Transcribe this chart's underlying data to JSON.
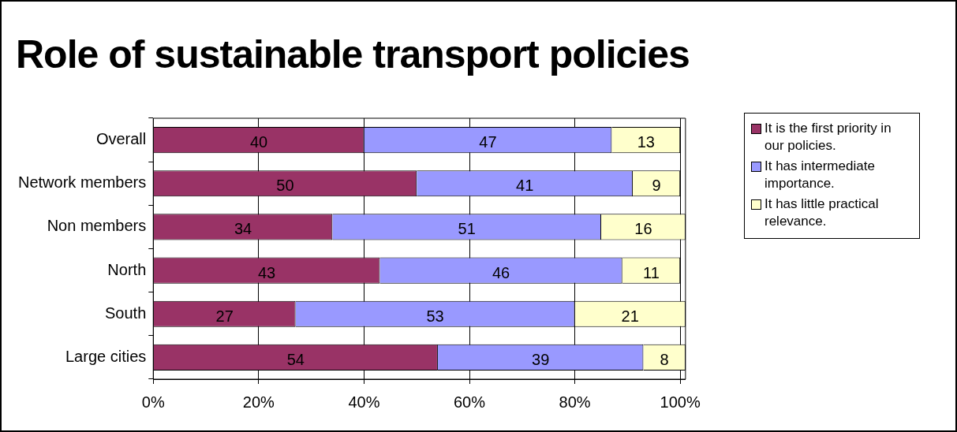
{
  "chart_data": {
    "type": "bar",
    "orientation": "horizontal",
    "stacked": true,
    "title": "Role of sustainable transport policies",
    "categories": [
      "Overall",
      "Network members",
      "Non members",
      "North",
      "South",
      "Large cities"
    ],
    "series": [
      {
        "name": "It is the first priority in our policies.",
        "color": "#993366",
        "values": [
          40,
          50,
          34,
          43,
          27,
          54
        ]
      },
      {
        "name": "It has intermediate importance.",
        "color": "#9999ff",
        "values": [
          47,
          41,
          51,
          46,
          53,
          39
        ]
      },
      {
        "name": "It has little practical relevance.",
        "color": "#ffffcc",
        "values": [
          13,
          9,
          16,
          11,
          21,
          8
        ]
      }
    ],
    "xlim": [
      0,
      101
    ],
    "xticks": [
      {
        "value": 0,
        "label": "0%"
      },
      {
        "value": 20,
        "label": "20%"
      },
      {
        "value": 40,
        "label": "40%"
      },
      {
        "value": 60,
        "label": "60%"
      },
      {
        "value": 80,
        "label": "80%"
      },
      {
        "value": 100,
        "label": "100%"
      }
    ],
    "grid": "x",
    "legend": "right",
    "data_labels": true
  }
}
